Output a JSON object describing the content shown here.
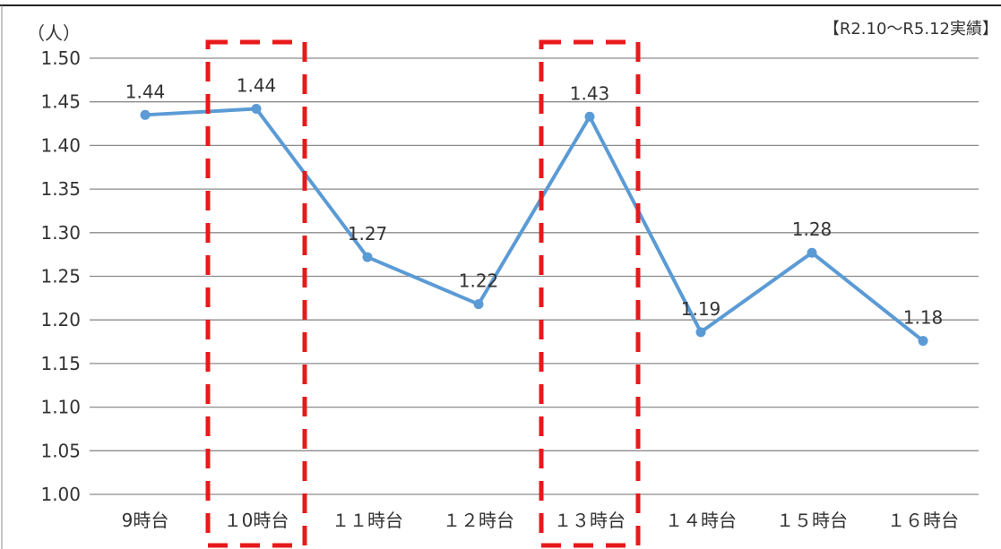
{
  "chart_data": {
    "type": "line",
    "unit_label": "（人）",
    "note": "【R2.10～R5.12実績】",
    "categories": [
      "9時台",
      "１0時台",
      "１１時台",
      "１２時台",
      "１３時台",
      "１４時台",
      "１５時台",
      "１６時台"
    ],
    "series": [
      {
        "values": [
          1.435,
          1.442,
          1.272,
          1.218,
          1.433,
          1.186,
          1.277,
          1.176
        ],
        "labels": [
          "1.44",
          "1.44",
          "1.27",
          "1.22",
          "1.43",
          "1.19",
          "1.28",
          "1.18"
        ]
      }
    ],
    "y_ticks": [
      "1.00",
      "1.05",
      "1.10",
      "1.15",
      "1.20",
      "1.25",
      "1.30",
      "1.35",
      "1.40",
      "1.45",
      "1.50"
    ],
    "ylim": [
      1.0,
      1.5
    ],
    "grid": true,
    "highlighted_categories": [
      "１0時台",
      "１３時台"
    ],
    "colors": {
      "line": "#5b9bd5",
      "highlight": "#e8191b",
      "grid": "#8c8c8c"
    }
  }
}
